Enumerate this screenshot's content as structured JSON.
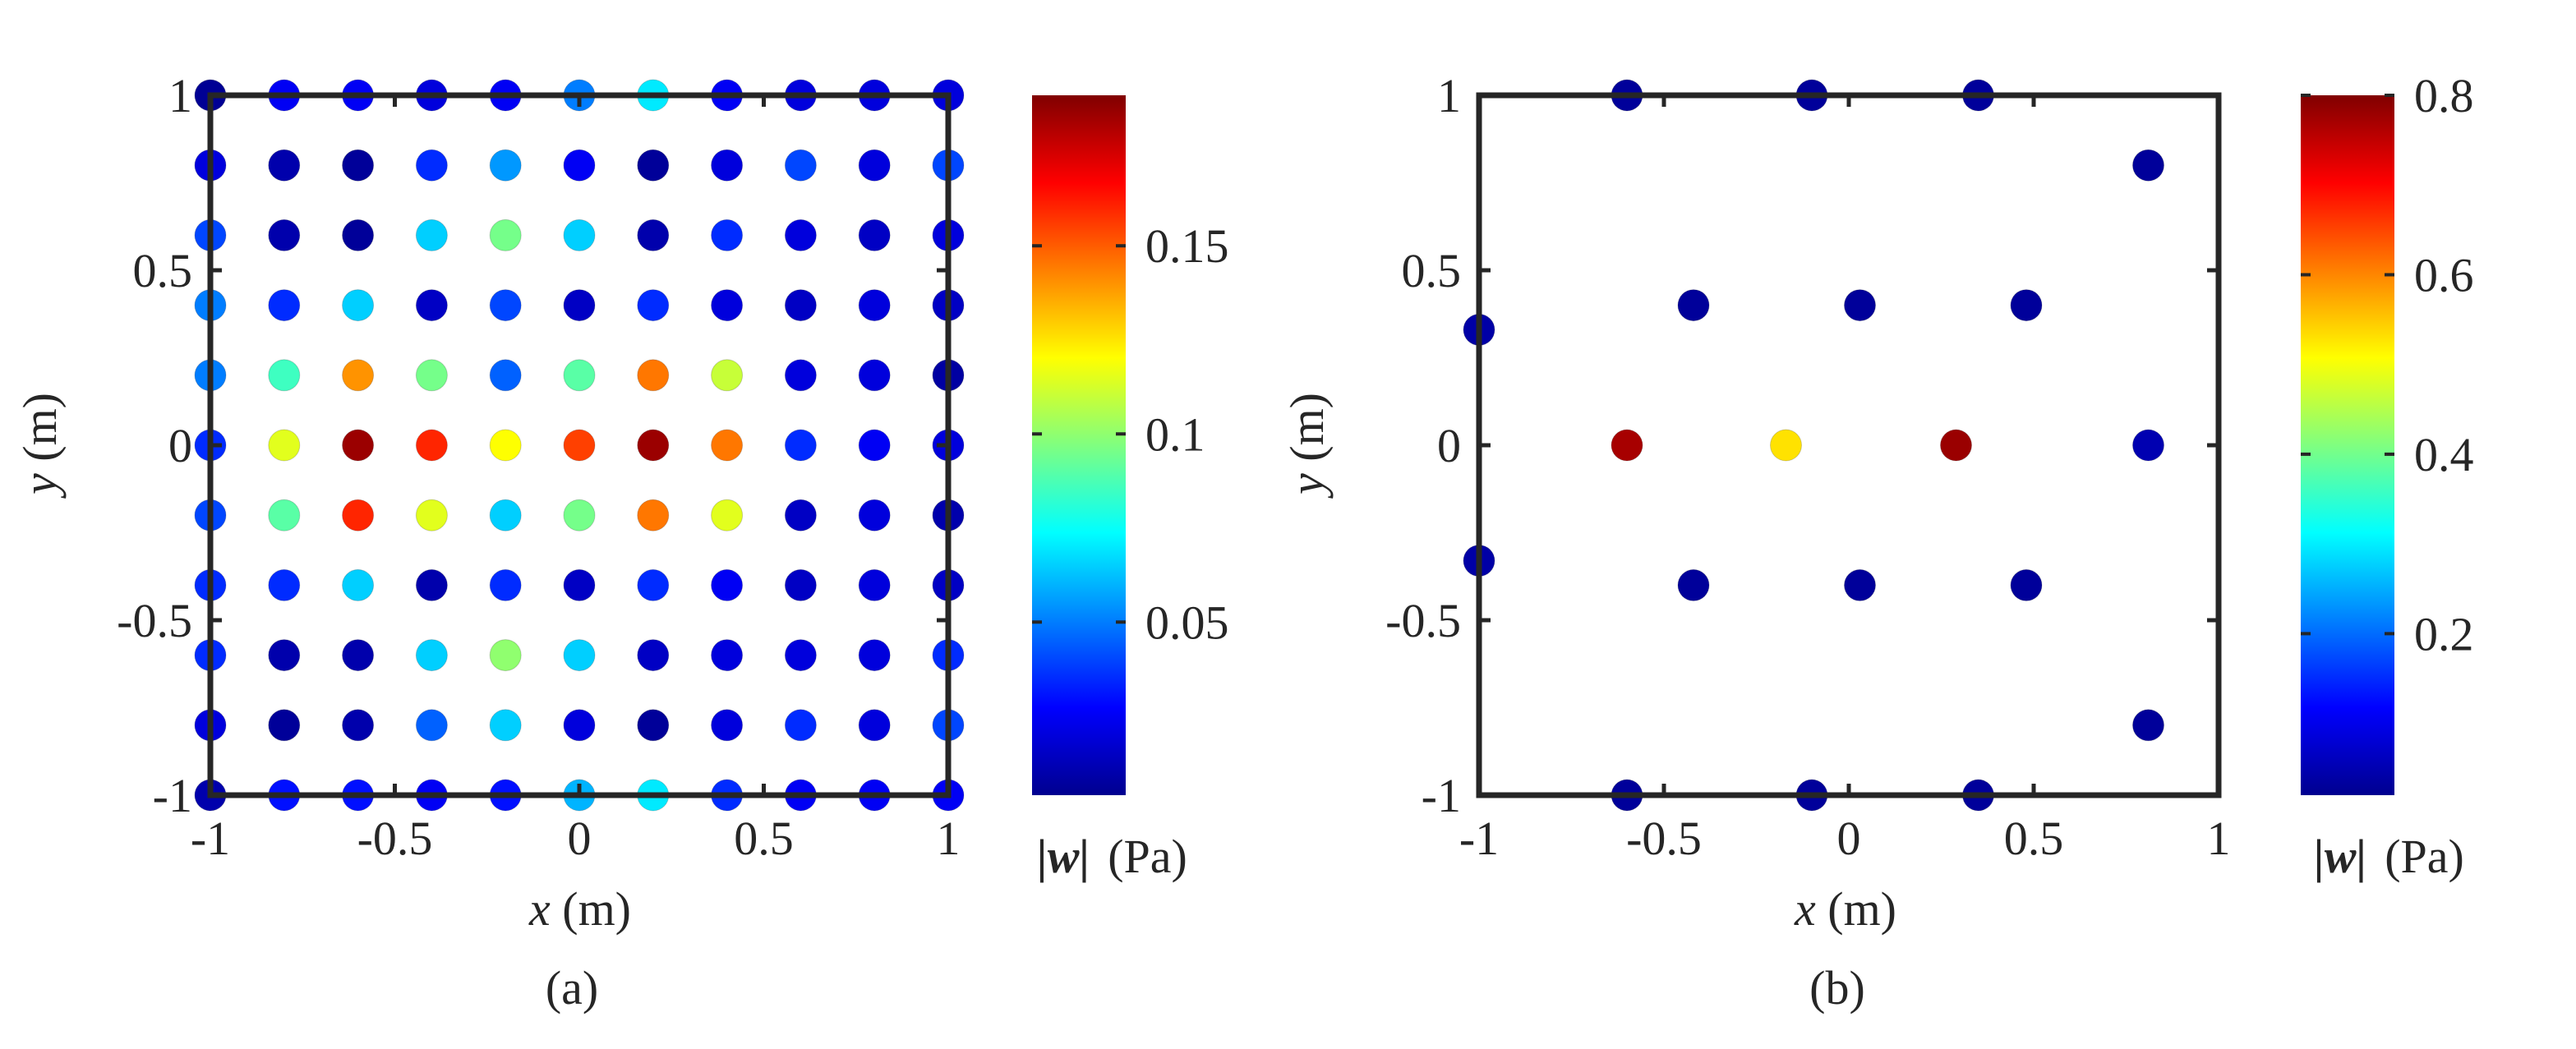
{
  "chart_data": [
    {
      "type": "scatter",
      "panel_label": "(a)",
      "xlabel_var": "x",
      "xlabel_unit": " (m)",
      "ylabel_var": "y",
      "ylabel_unit": " (m)",
      "xlim": [
        -1,
        1
      ],
      "ylim": [
        -1,
        1
      ],
      "xticks": [
        "-1",
        "-0.5",
        "0",
        "0.5",
        "1"
      ],
      "xtick_values": [
        -1,
        -0.5,
        0,
        0.5,
        1
      ],
      "yticks": [
        "-1",
        "-0.5",
        "0",
        "0.5",
        "1"
      ],
      "ytick_values": [
        -1,
        -0.5,
        0,
        0.5,
        1
      ],
      "colorbar": {
        "label_var": "|w|",
        "label_unit": "(Pa)",
        "range": [
          0.004,
          0.19
        ],
        "ticks": [
          "0.05",
          "0.1",
          "0.15"
        ],
        "tick_values": [
          0.05,
          0.1,
          0.15
        ],
        "colormap": "jet"
      },
      "grid_x": [
        -1,
        -0.8,
        -0.6,
        -0.4,
        -0.2,
        0,
        0.2,
        0.4,
        0.6,
        0.8,
        1
      ],
      "grid_y": [
        1,
        0.8,
        0.6,
        0.4,
        0.2,
        0,
        -0.2,
        -0.4,
        -0.6,
        -0.8,
        -1
      ],
      "values": [
        [
          0.005,
          0.025,
          0.025,
          0.02,
          0.025,
          0.05,
          0.07,
          0.025,
          0.02,
          0.02,
          0.02
        ],
        [
          0.02,
          0.01,
          0.006,
          0.035,
          0.055,
          0.025,
          0.006,
          0.02,
          0.04,
          0.02,
          0.04
        ],
        [
          0.04,
          0.01,
          0.006,
          0.065,
          0.095,
          0.065,
          0.01,
          0.035,
          0.02,
          0.015,
          0.02
        ],
        [
          0.05,
          0.035,
          0.065,
          0.015,
          0.04,
          0.015,
          0.035,
          0.02,
          0.015,
          0.02,
          0.015
        ],
        [
          0.05,
          0.085,
          0.14,
          0.095,
          0.045,
          0.09,
          0.145,
          0.11,
          0.02,
          0.02,
          0.008
        ],
        [
          0.035,
          0.115,
          0.185,
          0.16,
          0.12,
          0.155,
          0.185,
          0.145,
          0.035,
          0.025,
          0.02
        ],
        [
          0.04,
          0.09,
          0.16,
          0.115,
          0.065,
          0.095,
          0.145,
          0.115,
          0.015,
          0.02,
          0.01
        ],
        [
          0.035,
          0.035,
          0.065,
          0.01,
          0.035,
          0.015,
          0.035,
          0.025,
          0.015,
          0.02,
          0.015
        ],
        [
          0.035,
          0.01,
          0.01,
          0.065,
          0.1,
          0.065,
          0.015,
          0.02,
          0.02,
          0.02,
          0.035
        ],
        [
          0.02,
          0.006,
          0.01,
          0.045,
          0.065,
          0.02,
          0.006,
          0.02,
          0.035,
          0.02,
          0.04
        ],
        [
          0.01,
          0.03,
          0.03,
          0.025,
          0.03,
          0.06,
          0.07,
          0.035,
          0.025,
          0.025,
          0.025
        ]
      ]
    },
    {
      "type": "scatter",
      "panel_label": "(b)",
      "xlabel_var": "x",
      "xlabel_unit": " (m)",
      "ylabel_var": "y",
      "ylabel_unit": " (m)",
      "xlim": [
        -1,
        1
      ],
      "ylim": [
        -1,
        1
      ],
      "xticks": [
        "-1",
        "-0.5",
        "0",
        "0.5",
        "1"
      ],
      "xtick_values": [
        -1,
        -0.5,
        0,
        0.5,
        1
      ],
      "yticks": [
        "-1",
        "-0.5",
        "0",
        "0.5",
        "1"
      ],
      "ytick_values": [
        -1,
        -0.5,
        0,
        0.5,
        1
      ],
      "colorbar": {
        "label_var": "|w|",
        "label_unit": "(Pa)",
        "range": [
          0.02,
          0.8
        ],
        "ticks": [
          "0.2",
          "0.4",
          "0.6",
          "0.8"
        ],
        "tick_values": [
          0.2,
          0.4,
          0.6,
          0.8
        ],
        "colormap": "jet"
      },
      "points": [
        {
          "x": -0.6,
          "y": 1,
          "value": 0.03
        },
        {
          "x": -0.1,
          "y": 1,
          "value": 0.03
        },
        {
          "x": 0.35,
          "y": 1,
          "value": 0.03
        },
        {
          "x": 0.81,
          "y": 0.8,
          "value": 0.03
        },
        {
          "x": -1,
          "y": 0.33,
          "value": 0.04
        },
        {
          "x": -0.42,
          "y": 0.4,
          "value": 0.03
        },
        {
          "x": 0.03,
          "y": 0.4,
          "value": 0.03
        },
        {
          "x": 0.48,
          "y": 0.4,
          "value": 0.03
        },
        {
          "x": -0.6,
          "y": 0,
          "value": 0.77
        },
        {
          "x": -0.17,
          "y": 0,
          "value": 0.53
        },
        {
          "x": 0.29,
          "y": 0,
          "value": 0.78
        },
        {
          "x": 0.81,
          "y": 0,
          "value": 0.05
        },
        {
          "x": -1,
          "y": -0.33,
          "value": 0.04
        },
        {
          "x": -0.42,
          "y": -0.4,
          "value": 0.03
        },
        {
          "x": 0.03,
          "y": -0.4,
          "value": 0.03
        },
        {
          "x": 0.48,
          "y": -0.4,
          "value": 0.03
        },
        {
          "x": 0.81,
          "y": -0.8,
          "value": 0.03
        },
        {
          "x": -0.6,
          "y": -1,
          "value": 0.03
        },
        {
          "x": -0.1,
          "y": -1,
          "value": 0.03
        },
        {
          "x": 0.35,
          "y": -1,
          "value": 0.03
        }
      ]
    }
  ]
}
